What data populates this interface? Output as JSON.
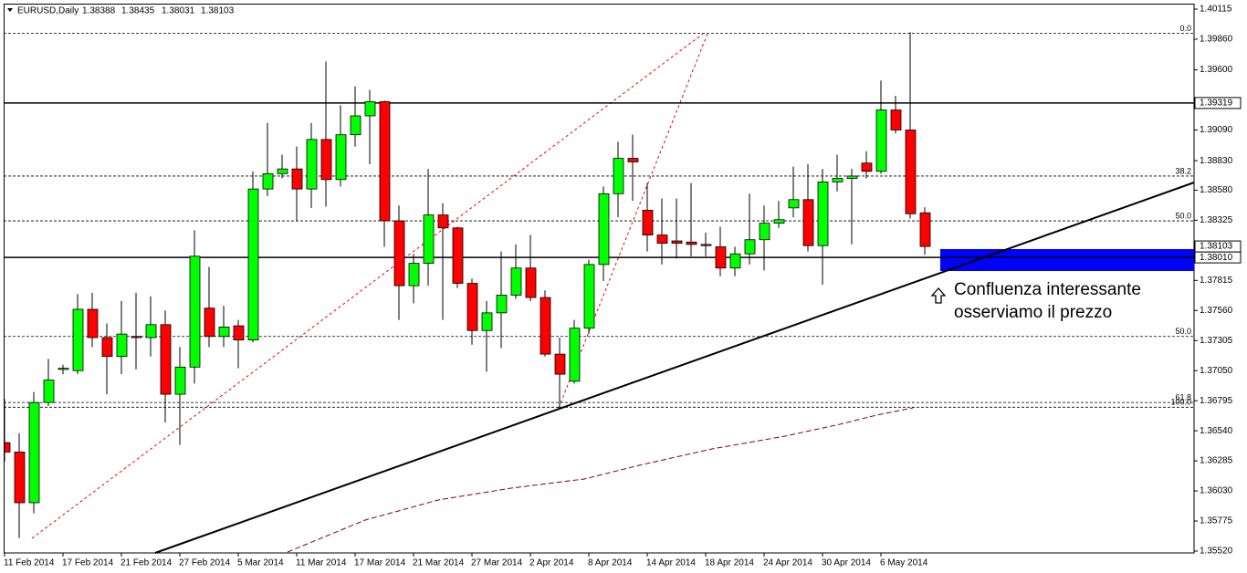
{
  "chart_data": {
    "type": "candlestick",
    "title": "EURUSD,Daily",
    "categories": [
      "11 Feb 2014",
      null,
      null,
      null,
      "17 Feb 2014",
      null,
      null,
      null,
      "21 Feb 2014",
      null,
      null,
      null,
      "27 Feb 2014",
      null,
      null,
      null,
      "5 Mar 2014",
      null,
      null,
      null,
      "11 Mar 2014",
      null,
      null,
      null,
      "17 Mar 2014",
      null,
      null,
      null,
      "21 Mar 2014",
      null,
      null,
      null,
      "27 Mar 2014",
      null,
      null,
      null,
      "2 Apr 2014",
      null,
      null,
      null,
      "8 Apr 2014",
      null,
      null,
      null,
      "14 Apr 2014",
      null,
      null,
      null,
      "18 Apr 2014",
      null,
      null,
      null,
      "24 Apr 2014",
      null,
      null,
      null,
      "30 Apr 2014",
      null,
      null,
      null,
      "6 May 2014",
      null,
      null,
      null
    ],
    "open": [
      1.3644,
      1.3636,
      1.3593,
      1.3678,
      1.3706,
      1.3705,
      1.3757,
      1.3733,
      1.3717,
      1.3734,
      1.3733,
      1.3744,
      1.3685,
      1.3708,
      1.3758,
      1.3734,
      1.3743,
      1.3731,
      1.3859,
      1.3872,
      1.3876,
      1.3859,
      1.3901,
      1.3867,
      1.3905,
      1.3921,
      1.3933,
      1.3832,
      1.3777,
      1.3796,
      1.3837,
      1.3826,
      1.3779,
      1.3739,
      1.3754,
      1.3769,
      1.3792,
      1.3767,
      1.3719,
      1.3696,
      1.3741,
      1.3795,
      1.3855,
      1.3885,
      1.3841,
      1.382,
      1.3815,
      1.3814,
      1.3812,
      1.381,
      1.3792,
      1.3804,
      1.3816,
      1.383,
      1.3843,
      1.385,
      1.3811,
      1.3865,
      1.3868,
      1.3881,
      1.3874,
      1.3926,
      1.3909,
      1.38388
    ],
    "high": [
      1.3681,
      1.3652,
      1.3687,
      1.3715,
      1.371,
      1.377,
      1.3771,
      1.3745,
      1.3764,
      1.3771,
      1.3768,
      1.3756,
      1.3725,
      1.3824,
      1.3793,
      1.376,
      1.3748,
      1.3874,
      1.3915,
      1.3888,
      1.3895,
      1.3915,
      1.3967,
      1.393,
      1.3946,
      1.3943,
      1.3934,
      1.3845,
      1.3804,
      1.3876,
      1.3847,
      1.3827,
      1.3783,
      1.3764,
      1.3806,
      1.3812,
      1.382,
      1.3773,
      1.3733,
      1.3748,
      1.3799,
      1.3861,
      1.3899,
      1.3905,
      1.3864,
      1.3851,
      1.3851,
      1.3864,
      1.3822,
      1.3827,
      1.381,
      1.3855,
      1.3845,
      1.3849,
      1.3878,
      1.388,
      1.3876,
      1.3888,
      1.3876,
      1.3891,
      1.3951,
      1.3938,
      1.3992,
      1.38435
    ],
    "low": [
      1.3628,
      1.3563,
      1.3584,
      1.3675,
      1.3702,
      1.3702,
      1.3725,
      1.3685,
      1.3702,
      1.3706,
      1.3717,
      1.3661,
      1.3642,
      1.3694,
      1.3725,
      1.3725,
      1.3707,
      1.3729,
      1.3853,
      1.3868,
      1.3832,
      1.3843,
      1.3844,
      1.3861,
      1.3895,
      1.388,
      1.381,
      1.3748,
      1.3762,
      1.3777,
      1.3748,
      1.3775,
      1.3727,
      1.3704,
      1.3724,
      1.3766,
      1.3764,
      1.3717,
      1.3673,
      1.3694,
      1.3736,
      1.3781,
      1.3835,
      1.3849,
      1.3806,
      1.3795,
      1.38,
      1.3802,
      1.3802,
      1.3785,
      1.3785,
      1.3795,
      1.379,
      1.3826,
      1.3835,
      1.3806,
      1.3778,
      1.3857,
      1.3812,
      1.3868,
      1.3872,
      1.3906,
      1.3834,
      1.38031
    ],
    "close": [
      1.3636,
      1.3593,
      1.3678,
      1.3697,
      1.3707,
      1.3757,
      1.3733,
      1.3717,
      1.3736,
      1.3733,
      1.3744,
      1.3685,
      1.3708,
      1.3802,
      1.3734,
      1.3742,
      1.3731,
      1.3859,
      1.3872,
      1.3876,
      1.3859,
      1.3901,
      1.3867,
      1.3905,
      1.3921,
      1.3933,
      1.3832,
      1.3777,
      1.3796,
      1.3837,
      1.3826,
      1.3779,
      1.3739,
      1.3754,
      1.3769,
      1.3792,
      1.3767,
      1.3719,
      1.3702,
      1.3741,
      1.3795,
      1.3855,
      1.3885,
      1.3882,
      1.382,
      1.3813,
      1.3813,
      1.3812,
      1.3811,
      1.3792,
      1.3804,
      1.3816,
      1.383,
      1.3833,
      1.385,
      1.3811,
      1.3865,
      1.3868,
      1.387,
      1.3874,
      1.3926,
      1.3909,
      1.3838,
      1.38103
    ],
    "up_color": "#00ff00",
    "down_color": "#ff0000",
    "ylim": [
      1.3552,
      1.40115
    ],
    "yticks": [
      1.40115,
      {
        "value": 1.3986,
        "label": "1.39860"
      },
      {
        "value": 1.396,
        "label": "1.39600"
      },
      {
        "value": 1.3909,
        "label": "1.39090"
      },
      {
        "value": 1.3883,
        "label": "1.38830"
      },
      {
        "value": 1.3858,
        "label": "1.38580"
      },
      1.38325,
      1.37815,
      {
        "value": 1.3756,
        "label": "1.37560"
      },
      1.37305,
      {
        "value": 1.3705,
        "label": "1.37050"
      },
      1.36795,
      {
        "value": 1.3654,
        "label": "1.36540"
      },
      1.36285,
      {
        "value": 1.3603,
        "label": "1.36030"
      },
      1.35775,
      {
        "value": 1.3552,
        "label": "1.35520"
      }
    ],
    "levels": [
      1.39319,
      {
        "value": 1.3801,
        "label": "1.38010"
      }
    ],
    "fib_levels": [
      {
        "label": "0.0",
        "value": 1.3991
      },
      {
        "label": "38.2",
        "value": 1.387
      },
      {
        "label": "50.0",
        "value": 1.3832
      },
      {
        "label": "50.0",
        "value": 1.3734
      },
      {
        "label": "61.8",
        "value": 1.3678
      },
      {
        "label": "100.0",
        "value": 1.3674
      }
    ],
    "annotation": [
      "Confluenza interessante",
      "osserviamo il prezzo"
    ]
  }
}
